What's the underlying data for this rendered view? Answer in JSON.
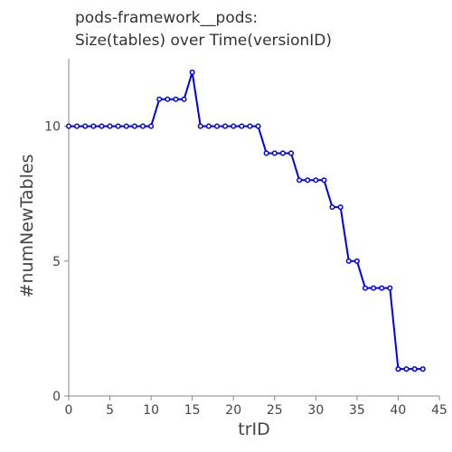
{
  "chart_data": {
    "type": "line",
    "title_lines": [
      "pods-framework__pods:",
      "Size(tables) over Time(versionID)"
    ],
    "xlabel": "trID",
    "ylabel": "#numNewTables",
    "xlim": [
      0,
      45
    ],
    "ylim": [
      0,
      12.5
    ],
    "x_ticks": [
      0,
      5,
      10,
      15,
      20,
      25,
      30,
      35,
      40,
      45
    ],
    "y_ticks": [
      0,
      5,
      10
    ],
    "grid": false,
    "series": [
      {
        "color": "#0000ee",
        "x": [
          0,
          1,
          2,
          3,
          4,
          5,
          6,
          7,
          8,
          9,
          10,
          11,
          12,
          13,
          14,
          15,
          16,
          17,
          18,
          19,
          20,
          21,
          22,
          23,
          24,
          25,
          26,
          27,
          28,
          29,
          30,
          31,
          32,
          33,
          34,
          35,
          36,
          37,
          38,
          39,
          40,
          41,
          42,
          43
        ],
        "y": [
          10,
          10,
          10,
          10,
          10,
          10,
          10,
          10,
          10,
          10,
          10,
          11,
          11,
          11,
          11,
          12,
          10,
          10,
          10,
          10,
          10,
          10,
          10,
          10,
          9,
          9,
          9,
          9,
          8,
          8,
          8,
          8,
          7,
          7,
          5,
          5,
          4,
          4,
          4,
          4,
          1,
          1,
          1,
          1
        ]
      }
    ]
  }
}
